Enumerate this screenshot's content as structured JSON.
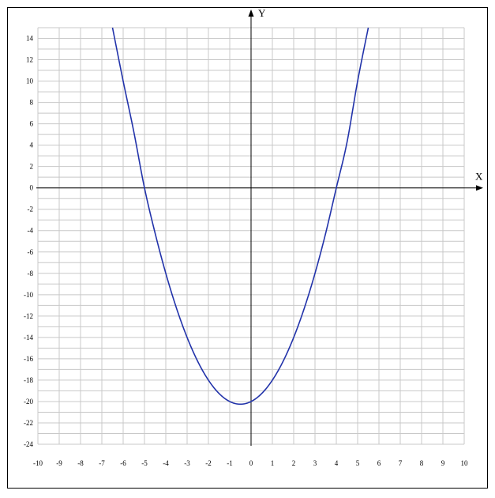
{
  "chart_data": {
    "type": "line",
    "title": "",
    "xlabel": "X",
    "ylabel": "Y",
    "xlim": [
      -10,
      10
    ],
    "ylim": [
      -24,
      15
    ],
    "grid": true,
    "xticks": [
      -10,
      -9,
      -8,
      -7,
      -6,
      -5,
      -4,
      -3,
      -2,
      -1,
      0,
      1,
      2,
      3,
      4,
      5,
      6,
      7,
      8,
      9,
      10
    ],
    "yticks": [
      14,
      12,
      10,
      8,
      6,
      4,
      2,
      0,
      -2,
      -4,
      -6,
      -8,
      -10,
      -12,
      -14,
      -16,
      -18,
      -20,
      -22,
      -24
    ],
    "series": [
      {
        "color": "#2233aa",
        "points": [
          [
            -6.5,
            15
          ],
          [
            -6,
            10
          ],
          [
            -5.5,
            5.25
          ],
          [
            -5,
            0
          ],
          [
            -4.5,
            -4.25
          ],
          [
            -4,
            -8
          ],
          [
            -3.5,
            -11.25
          ],
          [
            -3,
            -14
          ],
          [
            -2.5,
            -16.25
          ],
          [
            -2,
            -18
          ],
          [
            -1.5,
            -19.25
          ],
          [
            -1,
            -20
          ],
          [
            -0.5,
            -20.25
          ],
          [
            0,
            -20
          ],
          [
            0.5,
            -19.25
          ],
          [
            1,
            -18
          ],
          [
            1.5,
            -16.25
          ],
          [
            2,
            -14
          ],
          [
            2.5,
            -11.25
          ],
          [
            3,
            -8
          ],
          [
            3.5,
            -4.25
          ],
          [
            4,
            0
          ],
          [
            4.5,
            4.25
          ],
          [
            5,
            10
          ],
          [
            5.5,
            15
          ]
        ]
      }
    ]
  }
}
